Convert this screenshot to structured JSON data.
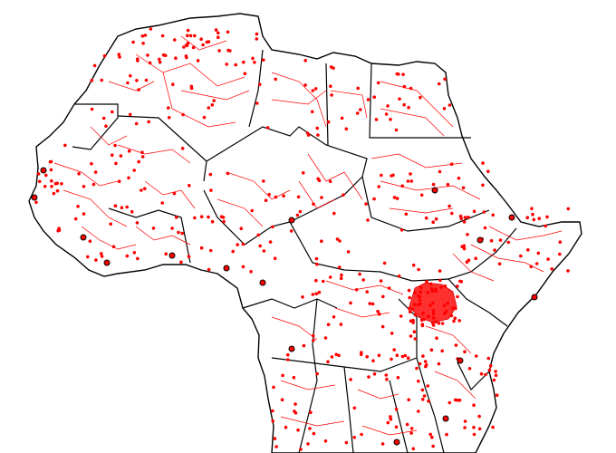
{
  "map": {
    "region": "Africa",
    "colors": {
      "background": "#ffffff",
      "country_border": "#000000",
      "admin_border": "#ff0000",
      "admin_centroid": "#ff0000",
      "capital_outline": "#000000"
    },
    "legend": "",
    "title": ""
  }
}
